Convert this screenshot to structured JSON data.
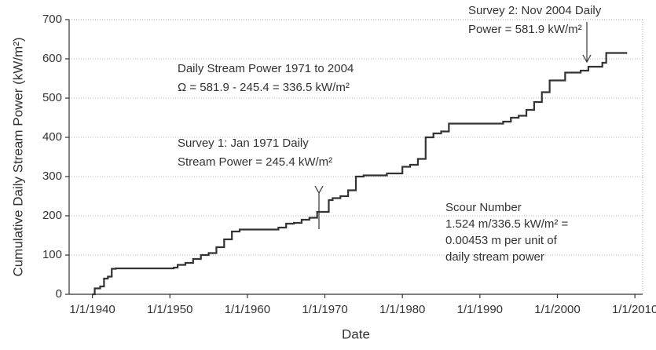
{
  "chart_data": {
    "type": "line",
    "step": "post",
    "x_label": "Date",
    "y_label": "Cumulative Daily Stream Power (kW/m²)",
    "x": [
      1940,
      1940.3,
      1941,
      1941.5,
      1942,
      1942.5,
      1943,
      1950.5,
      1951,
      1952,
      1953,
      1954,
      1955,
      1956,
      1957,
      1958,
      1959,
      1963,
      1964,
      1965,
      1966,
      1967,
      1968,
      1969,
      1970.5,
      1971,
      1972,
      1973,
      1974,
      1975,
      1978,
      1980,
      1981,
      1982,
      1983,
      1984,
      1985,
      1986,
      1993,
      1994,
      1995,
      1996,
      1997,
      1998,
      1999,
      2001,
      2003,
      2004,
      2005.8,
      2006.3,
      2009
    ],
    "series": [
      {
        "color": "#333333",
        "values": [
          0,
          15,
          20,
          40,
          45,
          65,
          66,
          68,
          75,
          80,
          90,
          100,
          105,
          120,
          140,
          160,
          165,
          165,
          170,
          180,
          182,
          190,
          195,
          210,
          240,
          245,
          250,
          265,
          300,
          303,
          308,
          325,
          330,
          345,
          400,
          410,
          415,
          435,
          440,
          450,
          455,
          470,
          490,
          515,
          545,
          565,
          570,
          580,
          590,
          615,
          615
        ]
      }
    ],
    "xlim": [
      1937,
      2011
    ],
    "xticks": [
      {
        "value": 1940,
        "label": "1/1/1940"
      },
      {
        "value": 1950,
        "label": "1/1/1950"
      },
      {
        "value": 1960,
        "label": "1/1/1960"
      },
      {
        "value": 1970,
        "label": "1/1/1970"
      },
      {
        "value": 1980,
        "label": "1/1/1980"
      },
      {
        "value": 1990,
        "label": "1/1/1990"
      },
      {
        "value": 2000,
        "label": "1/1/2000"
      },
      {
        "value": 2010,
        "label": "1/1/2010"
      }
    ],
    "ylim": [
      0,
      700
    ],
    "yticks": [
      0,
      100,
      200,
      300,
      400,
      500,
      600,
      700
    ],
    "grid": true,
    "annotations": [
      [
        "Survey 2: Nov 2004 Daily",
        "Power = 581.9 kW/m²"
      ],
      [
        "Daily Stream Power 1971 to 2004",
        "Ω = 581.9 - 245.4 = 336.5 kW/m²"
      ],
      [
        "Survey 1: Jan 1971 Daily",
        "Stream Power = 245.4 kW/m²"
      ],
      [
        "Scour Number",
        "1.524 m/336.5 kW/m² =",
        "0.00453 m per unit of",
        "daily stream power"
      ]
    ]
  }
}
